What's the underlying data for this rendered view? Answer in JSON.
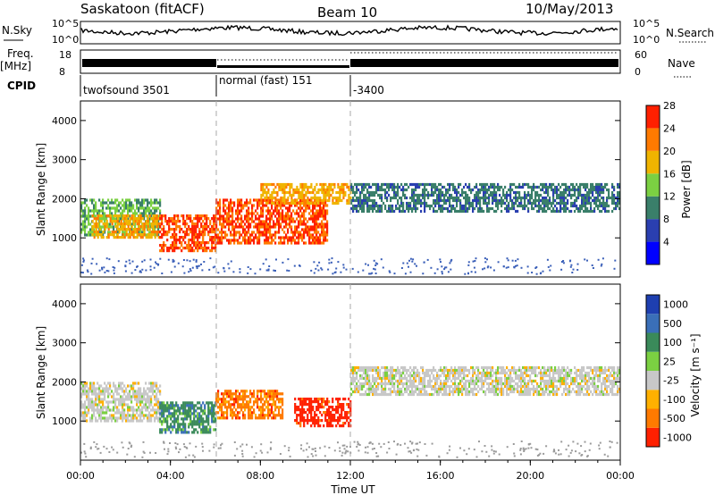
{
  "header": {
    "station": "Saskatoon (fitACF)",
    "beam": "Beam 10",
    "date": "10/May/2013"
  },
  "noise_panel": {
    "left_label": "N.Sky",
    "right_label": "N.Search",
    "left_ticks": [
      "10^5",
      "10^0"
    ],
    "right_ticks": [
      "10^5",
      "10^0"
    ]
  },
  "freq_panel": {
    "left_label_line1": "Freq.",
    "left_label_line2": "[MHz]",
    "left_ticks": [
      "18",
      "8"
    ],
    "right_label": "Nave",
    "right_ticks": [
      "60",
      "0"
    ]
  },
  "cpid": {
    "label": "CPID",
    "segments": [
      {
        "name": "twofsound 3501",
        "start": 0,
        "end": 6
      },
      {
        "name": "normal (fast) 151",
        "start": 6,
        "end": 12
      },
      {
        "name": "-3400",
        "start": 12,
        "end": 24
      }
    ]
  },
  "power_panel": {
    "ylabel": "Slant Range [km]",
    "yticks": [
      1000,
      2000,
      3000,
      4000
    ],
    "ylim": [
      0,
      4500
    ],
    "colorbar_label": "Power [dB]",
    "colorbar_ticks": [
      "4",
      "8",
      "12",
      "16",
      "20",
      "24",
      "28"
    ],
    "colorbar_colors": [
      "#0000ff",
      "#2a3fb0",
      "#3a7f6a",
      "#7bd042",
      "#f0b400",
      "#ff7a00",
      "#ff2000"
    ]
  },
  "velocity_panel": {
    "ylabel": "Slant Range [km]",
    "yticks": [
      1000,
      2000,
      3000,
      4000
    ],
    "ylim": [
      0,
      4500
    ],
    "colorbar_label": "Velocity [m s⁻¹]",
    "colorbar_ticks": [
      "1000",
      "500",
      "100",
      "25",
      "-25",
      "-100",
      "-500",
      "-1000"
    ],
    "colorbar_colors": [
      "#1e3fb0",
      "#3a6fb8",
      "#3a8a5a",
      "#7bd042",
      "#c8c8c8",
      "#ffb000",
      "#ff7a00",
      "#ff2000"
    ]
  },
  "xaxis": {
    "label": "Time UT",
    "ticks": [
      "00:00",
      "04:00",
      "08:00",
      "12:00",
      "16:00",
      "20:00",
      "00:00"
    ]
  },
  "chart_data": {
    "type": "heatmap",
    "title": "Saskatoon (fitACF)  Beam 10  10/May/2013",
    "xlabel": "Time UT",
    "ylabel": "Slant Range [km]",
    "xlim": [
      0,
      24
    ],
    "ylim": [
      0,
      4500
    ],
    "mode_changes_ut": [
      6,
      12
    ],
    "power_regions": [
      {
        "t": [
          0,
          3.5
        ],
        "range": [
          1100,
          2000
        ],
        "power_db": 12
      },
      {
        "t": [
          0.5,
          3.5
        ],
        "range": [
          1000,
          1600
        ],
        "power_db": 20
      },
      {
        "t": [
          3.5,
          6
        ],
        "range": [
          700,
          1600
        ],
        "power_db": 26
      },
      {
        "t": [
          6,
          11
        ],
        "range": [
          900,
          2000
        ],
        "power_db": 26
      },
      {
        "t": [
          8,
          12
        ],
        "range": [
          1900,
          2400
        ],
        "power_db": 20
      },
      {
        "t": [
          12,
          24
        ],
        "range": [
          1700,
          2400
        ],
        "power_db": 8
      }
    ],
    "velocity_regions": [
      {
        "t": [
          0,
          3.5
        ],
        "range": [
          1000,
          2000
        ],
        "velocity": 0
      },
      {
        "t": [
          3.5,
          6
        ],
        "range": [
          700,
          1500
        ],
        "velocity": 100
      },
      {
        "t": [
          6,
          9
        ],
        "range": [
          1100,
          1800
        ],
        "velocity": -300
      },
      {
        "t": [
          9.5,
          12
        ],
        "range": [
          900,
          1600
        ],
        "velocity": -500
      },
      {
        "t": [
          12,
          24
        ],
        "range": [
          1700,
          2400
        ],
        "velocity": 0
      }
    ]
  }
}
